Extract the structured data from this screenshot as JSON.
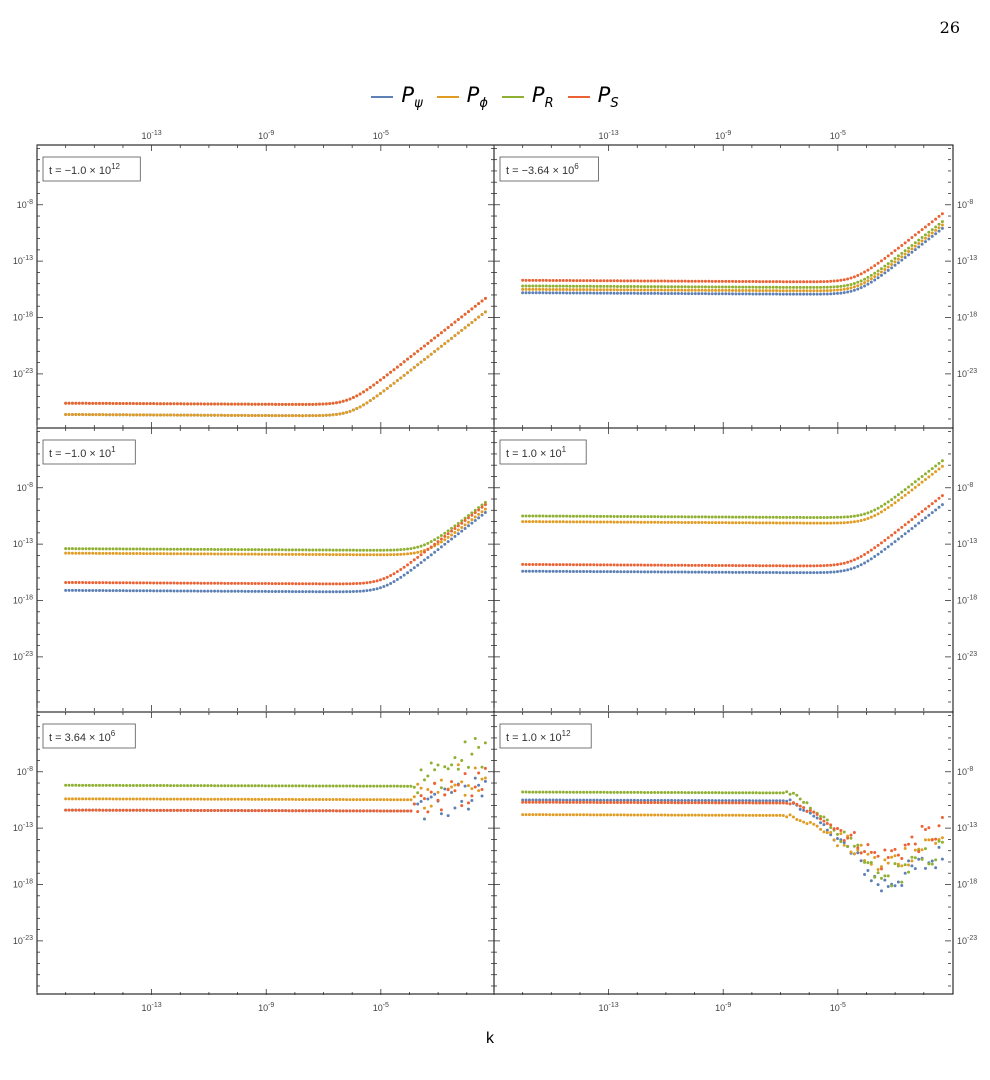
{
  "page_number": "26",
  "xlabel": "k",
  "legend": [
    {
      "base": "P",
      "sub": "ψ",
      "color": "#5E81B5"
    },
    {
      "base": "P",
      "sub": "ϕ",
      "color": "#E19C24"
    },
    {
      "base": "P",
      "sub": "R",
      "color": "#8FB032"
    },
    {
      "base": "P",
      "sub": "S",
      "color": "#EB6235"
    }
  ],
  "chart_data": {
    "type": "scatter",
    "xscale": "log",
    "yscale": "log",
    "xlim_log10": [
      -17,
      -1.05
    ],
    "ylim_log10": [
      -27.8,
      -2.7
    ],
    "x_tick_log10": [
      -13,
      -9,
      -5
    ],
    "y_tick_log10": [
      -8,
      -13,
      -18,
      -23
    ],
    "x_tick_labels": [
      "10^-13",
      "10^-9",
      "10^-5"
    ],
    "y_tick_labels": [
      "10^-8",
      "10^-13",
      "10^-18",
      "10^-23"
    ],
    "x_range_log10": [
      -16,
      -1.35
    ],
    "grid": false,
    "legend_position": "top-center",
    "panels": [
      {
        "label": "t = −1.0×10^12",
        "label_parts": {
          "pre": "t = −1.0 × 10",
          "exp": "12"
        },
        "series": [
          {
            "name": "P_ψ",
            "plateau_log10": -26.6,
            "knee_log10": -6.0,
            "slope": 2.0
          },
          {
            "name": "P_ϕ",
            "plateau_log10": -26.6,
            "knee_log10": -6.0,
            "slope": 2.0
          },
          {
            "name": "P_R",
            "plateau_log10": -25.6,
            "knee_log10": -6.1,
            "slope": 2.0
          },
          {
            "name": "P_S",
            "plateau_log10": -25.6,
            "knee_log10": -6.1,
            "slope": 2.0
          }
        ]
      },
      {
        "label": "t = −3.64×10^6",
        "label_parts": {
          "pre": "t = −3.64 × 10",
          "exp": "6"
        },
        "series": [
          {
            "name": "P_ψ",
            "plateau_log10": -15.8,
            "knee_log10": -4.3,
            "slope": 2.0
          },
          {
            "name": "P_ϕ",
            "plateau_log10": -15.5,
            "knee_log10": -4.3,
            "slope": 2.0
          },
          {
            "name": "P_R",
            "plateau_log10": -15.2,
            "knee_log10": -4.3,
            "slope": 2.0
          },
          {
            "name": "P_S",
            "plateau_log10": -14.7,
            "knee_log10": -4.4,
            "slope": 2.0
          }
        ]
      },
      {
        "label": "t = −1.0×10^1",
        "label_parts": {
          "pre": "t = −1.0 × 10",
          "exp": "1"
        },
        "series": [
          {
            "name": "P_ψ",
            "plateau_log10": -17.1,
            "knee_log10": -4.9,
            "slope": 2.0
          },
          {
            "name": "P_ϕ",
            "plateau_log10": -13.8,
            "knee_log10": -3.4,
            "slope": 2.0
          },
          {
            "name": "P_R",
            "plateau_log10": -13.4,
            "knee_log10": -3.5,
            "slope": 2.0
          },
          {
            "name": "P_S",
            "plateau_log10": -16.4,
            "knee_log10": -4.9,
            "slope": 2.0
          }
        ]
      },
      {
        "label": "t = 1.0×10^1",
        "label_parts": {
          "pre": "t = 1.0 × 10",
          "exp": "1"
        },
        "series": [
          {
            "name": "P_ψ",
            "plateau_log10": -15.4,
            "knee_log10": -4.4,
            "slope": 2.0
          },
          {
            "name": "P_ϕ",
            "plateau_log10": -11.0,
            "knee_log10": -3.9,
            "slope": 2.0
          },
          {
            "name": "P_R",
            "plateau_log10": -10.5,
            "knee_log10": -3.9,
            "slope": 2.0
          },
          {
            "name": "P_S",
            "plateau_log10": -14.8,
            "knee_log10": -4.5,
            "slope": 2.0
          }
        ]
      },
      {
        "label": "t = 3.64×10^6",
        "label_parts": {
          "pre": "t = 3.64 × 10",
          "exp": "6"
        },
        "series": [
          {
            "name": "P_ψ",
            "plateau_log10": -11.4,
            "knee_log10": -3.9,
            "slope": 0.0
          },
          {
            "name": "P_ϕ",
            "plateau_log10": -10.4,
            "knee_log10": -3.9,
            "slope": 0.0
          },
          {
            "name": "P_R",
            "plateau_log10": -9.2,
            "knee_log10": -3.9,
            "slope": 0.0
          },
          {
            "name": "P_S",
            "plateau_log10": -11.4,
            "knee_log10": -3.9,
            "slope": 0.0
          }
        ]
      },
      {
        "label": "t = 1.0×10^12",
        "label_parts": {
          "pre": "t = 1.0 × 10",
          "exp": "12"
        },
        "series": [
          {
            "name": "P_ψ",
            "plateau_log10": -10.5,
            "knee_log10": -6.2,
            "slope": 0.0
          },
          {
            "name": "P_ϕ",
            "plateau_log10": -11.8,
            "knee_log10": -6.2,
            "slope": 0.0
          },
          {
            "name": "P_R",
            "plateau_log10": -9.8,
            "knee_log10": -6.2,
            "slope": 0.0
          },
          {
            "name": "P_S",
            "plateau_log10": -10.7,
            "knee_log10": -6.2,
            "slope": 0.0
          }
        ]
      }
    ]
  }
}
